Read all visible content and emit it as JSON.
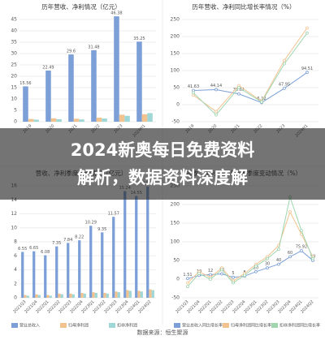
{
  "banner": {
    "lines": [
      "2024新奥每日免费资料",
      "解析，数据资料深度解"
    ]
  },
  "source": "数据来源：恒生聚源",
  "chart_data": [
    {
      "type": "bar",
      "title": "历年营收、净利情况（亿元）",
      "categories": [
        "2019",
        "2020",
        "2021",
        "2022",
        "2023",
        "2024H1"
      ],
      "ylim": [
        0,
        45
      ],
      "yticks": [
        0,
        5,
        10,
        15,
        20,
        25,
        30,
        35,
        40,
        45
      ],
      "grid": true,
      "series": [
        {
          "color": "#7b9fd6",
          "show_labels": true,
          "values": [
            15.56,
            22.49,
            29.6,
            31.48,
            46.38,
            35.25
          ]
        },
        {
          "color": "#f2c28f",
          "values": [
            1.2,
            1.5,
            1.3,
            1.8,
            3.1,
            3.3
          ]
        },
        {
          "color": "#9fd6d6",
          "values": [
            0.9,
            1.1,
            1.0,
            1.4,
            2.6,
            3.8
          ]
        }
      ]
    },
    {
      "type": "line",
      "title": "历年营收、净利同比增长率情况（%）",
      "categories": [
        "2019",
        "2020",
        "2021",
        "2022",
        "2023",
        "2024H1"
      ],
      "ylim": [
        -50,
        250
      ],
      "yticks": [
        -50,
        0,
        50,
        100,
        150,
        200,
        250
      ],
      "grid": true,
      "series": [
        {
          "color": "#7b9fd6",
          "show_labels": true,
          "values": [
            41.63,
            44.14,
            31.61,
            6.12,
            47.95,
            94.51
          ]
        },
        {
          "color": "#f2c28f",
          "values": [
            28,
            -20,
            56,
            10,
            130,
            225
          ]
        },
        {
          "color": "#9fd6b0",
          "values": [
            35,
            -30,
            50,
            8,
            120,
            210
          ]
        }
      ]
    },
    {
      "type": "bar",
      "title": "营收、净利季度变动情况（亿元）",
      "categories": [
        "2021Q3",
        "2021Q4",
        "2022Q1",
        "2022Q2",
        "2022Q3",
        "2022Q4",
        "2023Q1",
        "2023Q2",
        "2023Q3",
        "2023Q4",
        "2024Q1",
        "2024Q2"
      ],
      "ylim": [
        0,
        16
      ],
      "yticks": [
        0,
        2,
        4,
        6,
        8,
        10,
        12,
        14,
        16
      ],
      "grid": true,
      "series": [
        {
          "name": "营业总收入",
          "color": "#7b9fd6",
          "show_labels": true,
          "values": [
            6.55,
            6.65,
            6.08,
            7.35,
            7.84,
            8.22,
            10.29,
            9.35,
            11.57,
            15.24,
            14.55,
            15.9
          ]
        },
        {
          "name": "归母净利润",
          "color": "#f2c28f",
          "values": [
            0.4,
            0.5,
            0.4,
            0.6,
            0.6,
            0.7,
            0.8,
            0.7,
            0.9,
            1.1,
            1.0,
            1.2
          ]
        },
        {
          "name": "扣非净利润",
          "color": "#9fd6d6",
          "values": [
            0.3,
            0.4,
            0.3,
            0.5,
            0.5,
            0.6,
            0.7,
            0.6,
            0.8,
            1.0,
            0.9,
            1.1
          ]
        }
      ]
    },
    {
      "type": "line",
      "title": "营收、净利同比增长率季度变动情况（%）",
      "categories": [
        "2021Q3",
        "2021Q4",
        "2022Q1",
        "2022Q2",
        "2022Q3",
        "2022Q4",
        "2023Q1",
        "2023Q2",
        "2023Q3",
        "2023Q4",
        "2024Q1",
        "2024Q2"
      ],
      "ylim": [
        -50,
        250
      ],
      "yticks": [
        -50,
        0,
        50,
        100,
        150,
        200,
        250
      ],
      "grid": true,
      "series": [
        {
          "name": "营业总收入同比增长率",
          "color": "#7b9fd6",
          "show_labels": true,
          "values": [
            1.51,
            10,
            12,
            14,
            5,
            8,
            20,
            30,
            40,
            60,
            75.92,
            50
          ]
        },
        {
          "name": "归母净利润同比增长率",
          "color": "#f2c28f",
          "values": [
            -10,
            20,
            5,
            30,
            -5,
            15,
            40,
            60,
            90,
            180,
            120,
            60
          ]
        },
        {
          "name": "扣非净利润同比增长率",
          "color": "#9fd6b0",
          "values": [
            -20,
            15,
            0,
            25,
            -10,
            10,
            35,
            55,
            80,
            220,
            130,
            55
          ]
        }
      ]
    }
  ]
}
